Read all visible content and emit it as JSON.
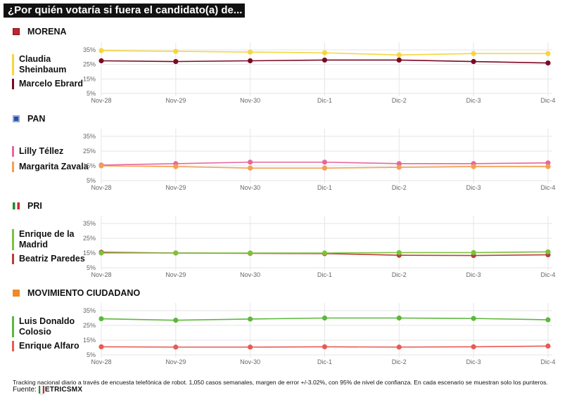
{
  "title": "¿Por quién votaría si fuera el candidato(a) de... ?",
  "footnote": "Tracking nacional diario a través de encuesta telefónica de robot. 1,050 casos semanales, margen de error +/-3.02%, con 95% de nivel de confianza. En cada escenario se muestran solo los punteros.",
  "source_label": "Fuente:",
  "source_logo": "ETRICSMX",
  "chart_data": [
    {
      "type": "line",
      "title": "MORENA",
      "party_color": "#c0262d",
      "categories": [
        "Nov-28",
        "Nov-29",
        "Nov-30",
        "Dic-1",
        "Dic-2",
        "Dic-3",
        "Dic-4"
      ],
      "yticks": [
        "35%",
        "25%",
        "15%",
        "5%"
      ],
      "ylim": [
        5,
        35
      ],
      "grid": true,
      "series": [
        {
          "name": "Claudia Sheinbaum",
          "label_lines": [
            "Claudia",
            "Sheinbaum"
          ],
          "color": "#f5d63d",
          "values": [
            34.5,
            34,
            33.5,
            33,
            31.5,
            32.5,
            32.5
          ]
        },
        {
          "name": "Marcelo Ebrard",
          "label_lines": [
            "Marcelo Ebrard"
          ],
          "color": "#7a0a25",
          "values": [
            27.5,
            27,
            27.5,
            28,
            28,
            27,
            26
          ]
        }
      ]
    },
    {
      "type": "line",
      "title": "PAN",
      "party_color": "#2c4ea3",
      "categories": [
        "Nov-28",
        "Nov-29",
        "Nov-30",
        "Dic-1",
        "Dic-2",
        "Dic-3",
        "Dic-4"
      ],
      "yticks": [
        "35%",
        "25%",
        "15%",
        "5%"
      ],
      "ylim": [
        5,
        35
      ],
      "grid": true,
      "series": [
        {
          "name": "Lilly Téllez",
          "label_lines": [
            "Lilly Téllez"
          ],
          "color": "#e8669b",
          "values": [
            15.5,
            16.5,
            17.5,
            17.5,
            16.5,
            16.5,
            17
          ]
        },
        {
          "name": "Margarita Zavala",
          "label_lines": [
            "Margarita Zavala"
          ],
          "color": "#f4a050",
          "values": [
            15,
            14.5,
            13.5,
            13.5,
            14,
            14.5,
            14.5
          ]
        }
      ]
    },
    {
      "type": "line",
      "title": "PRI",
      "party_color": "#1e8a3c",
      "categories": [
        "Nov-28",
        "Nov-29",
        "Nov-30",
        "Dic-1",
        "Dic-2",
        "Dic-3",
        "Dic-4"
      ],
      "yticks": [
        "35%",
        "25%",
        "15%",
        "5%"
      ],
      "ylim": [
        5,
        35
      ],
      "grid": true,
      "series": [
        {
          "name": "Beatriz Paredes",
          "label_lines": [
            "Beatriz Paredes"
          ],
          "color": "#b8403a",
          "values": [
            15.5,
            15,
            14.8,
            14.6,
            13.5,
            13.3,
            13.8
          ]
        },
        {
          "name": "Enrique de la Madrid",
          "label_lines": [
            "Enrique de la",
            "Madrid"
          ],
          "color": "#7cc23a",
          "values": [
            15,
            15,
            15,
            15,
            15.3,
            15.3,
            15.8
          ]
        }
      ]
    },
    {
      "type": "line",
      "title": "MOVIMIENTO CIUDADANO",
      "party_color": "#f08a24",
      "categories": [
        "Nov-28",
        "Nov-29",
        "Nov-30",
        "Dic-1",
        "Dic-2",
        "Dic-3",
        "Dic-4"
      ],
      "yticks": [
        "35%",
        "25%",
        "15%",
        "5%"
      ],
      "ylim": [
        5,
        35
      ],
      "grid": true,
      "series": [
        {
          "name": "Luis Donaldo Colosio",
          "label_lines": [
            "Luis Donaldo",
            "Colosio"
          ],
          "color": "#5cb83a",
          "values": [
            29.5,
            28.5,
            29.3,
            30,
            30,
            29.7,
            28.8
          ]
        },
        {
          "name": "Enrique Alfaro",
          "label_lines": [
            "Enrique Alfaro"
          ],
          "color": "#e85a55",
          "values": [
            10.5,
            10.3,
            10.3,
            10.5,
            10.3,
            10.5,
            11
          ]
        }
      ]
    }
  ]
}
